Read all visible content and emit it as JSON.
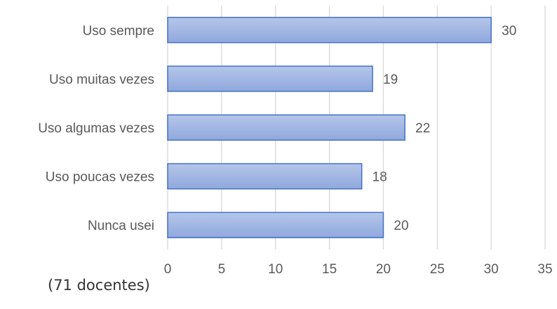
{
  "chart_data": {
    "type": "bar",
    "orientation": "horizontal",
    "categories": [
      "Uso sempre",
      "Uso muitas vezes",
      "Uso algumas vezes",
      "Uso poucas vezes",
      "Nunca usei"
    ],
    "values": [
      30,
      19,
      22,
      18,
      20
    ],
    "xlim": [
      0,
      35
    ],
    "xticks": [
      0,
      5,
      10,
      15,
      20,
      25,
      30,
      35
    ],
    "grid": "vertical",
    "data_labels": true,
    "bar_color": "#8FA8DC",
    "bar_color_light": "#B5C6EA",
    "bar_edge_color": "#4472C4"
  },
  "caption": "(71 docentes)"
}
